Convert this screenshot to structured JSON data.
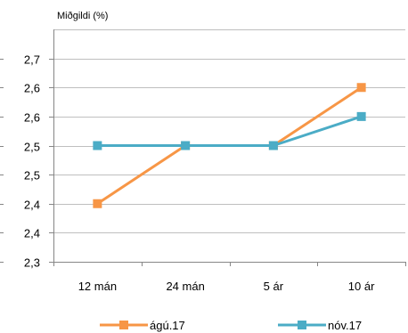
{
  "chart_data": {
    "type": "line",
    "ylabel": "Miðgildi (%)",
    "categories": [
      "12 mán",
      "24 mán",
      "5 ár",
      "10 ár"
    ],
    "ylim": [
      2.3,
      2.7
    ],
    "y_ticks": [
      2.3,
      2.35,
      2.4,
      2.45,
      2.5,
      2.55,
      2.6,
      2.65
    ],
    "y_tick_labels": [
      "2,3",
      "2,4",
      "2,4",
      "2,5",
      "2,5",
      "2,6",
      "2,6",
      "2,7"
    ],
    "grid": true,
    "legend_position": "bottom",
    "series": [
      {
        "name": "ágú.17",
        "color": "#F79646",
        "marker": "square",
        "values": [
          2.4,
          2.5,
          2.5,
          2.6
        ]
      },
      {
        "name": "nóv.17",
        "color": "#4BACC6",
        "marker": "square",
        "values": [
          2.5,
          2.5,
          2.5,
          2.55
        ]
      }
    ]
  }
}
